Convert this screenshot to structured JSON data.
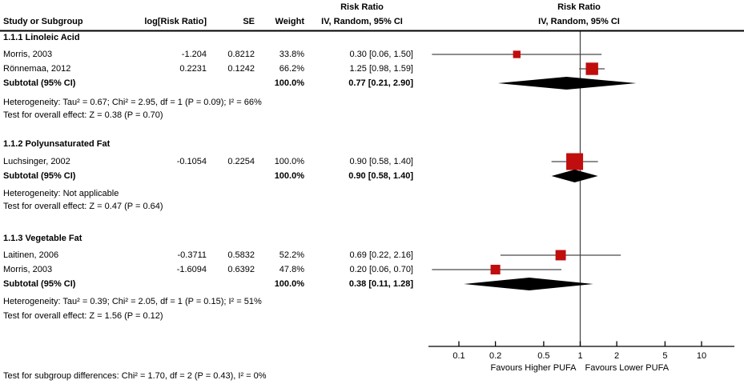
{
  "header": {
    "risk_ratio_title": "Risk Ratio",
    "columns": {
      "study": "Study or Subgroup",
      "log_rr": "log[Risk Ratio]",
      "se": "SE",
      "weight": "Weight",
      "ci": "IV, Random, 95% CI"
    }
  },
  "footer": {
    "subgroup_diff": "Test for subgroup differences: Chi² = 1.70, df = 2 (P = 0.43), I² = 0%"
  },
  "chart_data": {
    "type": "forest",
    "effect_measure": "Risk Ratio",
    "model": "IV, Random, 95% CI",
    "scale": "log10",
    "axis": {
      "min": 0.1,
      "max": 10,
      "ticks": [
        0.1,
        0.2,
        0.5,
        1,
        2,
        5,
        10
      ],
      "label_left": "Favours Higher PUFA",
      "label_right": "Favours Lower PUFA"
    },
    "colors": {
      "square": "#c00d0d",
      "diamond": "#000000",
      "line": "#4a4a4a"
    },
    "subgroups": [
      {
        "title": "1.1.1 Linoleic Acid",
        "studies": [
          {
            "name": "Morris, 2003",
            "log_rr": "-1.204",
            "se": "0.8212",
            "weight": "33.8%",
            "weight_pct": 33.8,
            "rr": 0.3,
            "ci_low": 0.06,
            "ci_high": 1.5,
            "ci_text": "0.30 [0.06, 1.50]"
          },
          {
            "name": "Rönnemaa, 2012",
            "log_rr": "0.2231",
            "se": "0.1242",
            "weight": "66.2%",
            "weight_pct": 66.2,
            "rr": 1.25,
            "ci_low": 0.98,
            "ci_high": 1.59,
            "ci_text": "1.25 [0.98, 1.59]"
          }
        ],
        "subtotal": {
          "label": "Subtotal (95% CI)",
          "weight": "100.0%",
          "rr": 0.77,
          "ci_low": 0.21,
          "ci_high": 2.9,
          "ci_text": "0.77 [0.21, 2.90]"
        },
        "heterogeneity": "Heterogeneity: Tau² = 0.67; Chi² = 2.95, df = 1 (P = 0.09); I² = 66%",
        "overall_effect": "Test for overall effect: Z = 0.38 (P = 0.70)"
      },
      {
        "title": "1.1.2 Polyunsaturated Fat",
        "studies": [
          {
            "name": "Luchsinger, 2002",
            "log_rr": "-0.1054",
            "se": "0.2254",
            "weight": "100.0%",
            "weight_pct": 100.0,
            "rr": 0.9,
            "ci_low": 0.58,
            "ci_high": 1.4,
            "ci_text": "0.90 [0.58, 1.40]"
          }
        ],
        "subtotal": {
          "label": "Subtotal (95% CI)",
          "weight": "100.0%",
          "rr": 0.9,
          "ci_low": 0.58,
          "ci_high": 1.4,
          "ci_text": "0.90 [0.58, 1.40]"
        },
        "heterogeneity": "Heterogeneity: Not applicable",
        "overall_effect": "Test for overall effect: Z = 0.47 (P = 0.64)"
      },
      {
        "title": "1.1.3 Vegetable Fat",
        "studies": [
          {
            "name": "Laitinen, 2006",
            "log_rr": "-0.3711",
            "se": "0.5832",
            "weight": "52.2%",
            "weight_pct": 52.2,
            "rr": 0.69,
            "ci_low": 0.22,
            "ci_high": 2.16,
            "ci_text": "0.69 [0.22, 2.16]"
          },
          {
            "name": "Morris, 2003",
            "log_rr": "-1.6094",
            "se": "0.6392",
            "weight": "47.8%",
            "weight_pct": 47.8,
            "rr": 0.2,
            "ci_low": 0.06,
            "ci_high": 0.7,
            "ci_text": "0.20 [0.06, 0.70]"
          }
        ],
        "subtotal": {
          "label": "Subtotal (95% CI)",
          "weight": "100.0%",
          "rr": 0.38,
          "ci_low": 0.11,
          "ci_high": 1.28,
          "ci_text": "0.38 [0.11, 1.28]"
        },
        "heterogeneity": "Heterogeneity: Tau² = 0.39; Chi² = 2.05, df = 1 (P = 0.15); I² = 51%",
        "overall_effect": "Test for overall effect: Z = 1.56 (P = 0.12)"
      }
    ]
  }
}
